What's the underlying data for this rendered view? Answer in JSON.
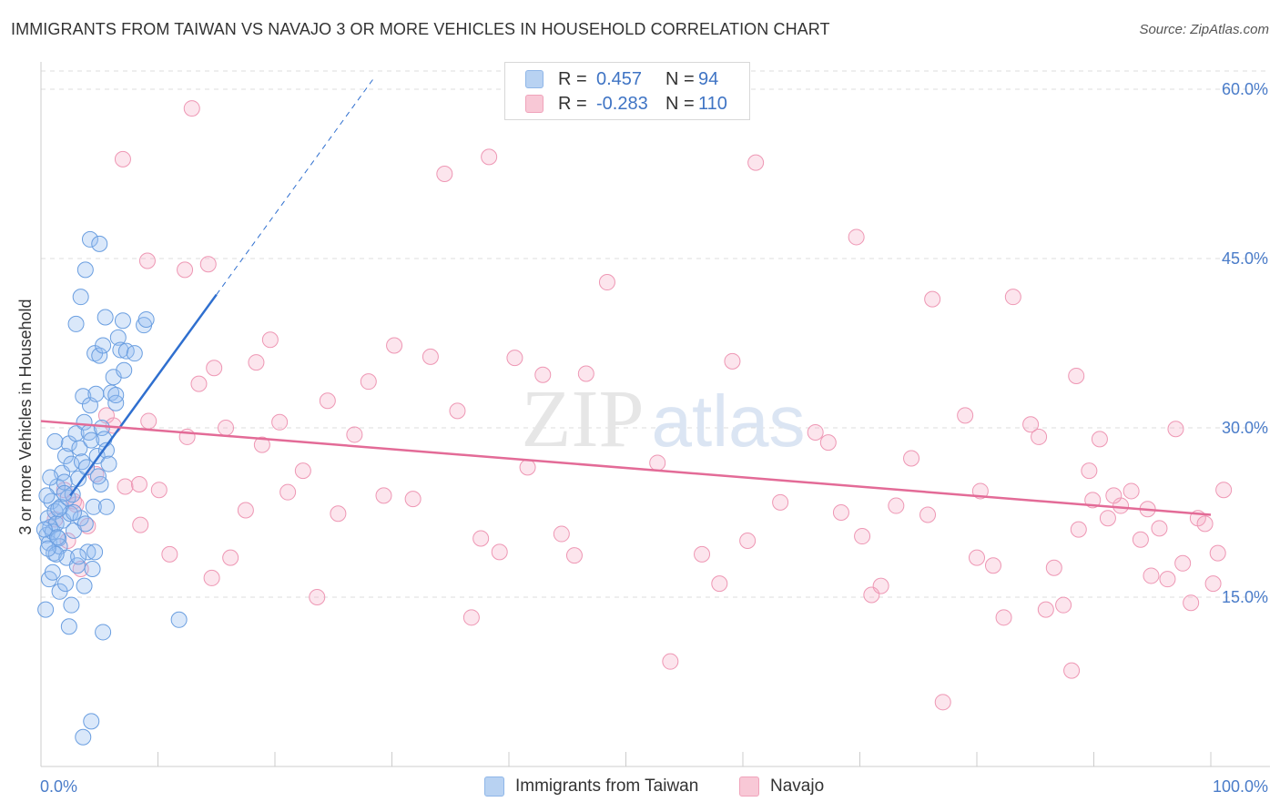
{
  "header": {
    "title": "IMMIGRANTS FROM TAIWAN VS NAVAJO 3 OR MORE VEHICLES IN HOUSEHOLD CORRELATION CHART",
    "source": "Source: ZipAtlas.com"
  },
  "watermark": {
    "zip": "ZIP",
    "atlas": "atlas"
  },
  "legend": {
    "rows": [
      {
        "r_label": "R =",
        "r_value": "0.457",
        "n_label": "N =",
        "n_value": "94",
        "color": "#8fb6e8",
        "fill": "#b8d2f2"
      },
      {
        "r_label": "R =",
        "r_value": "-0.283",
        "n_label": "N =",
        "n_value": "110",
        "color": "#f0a3bb",
        "fill": "#f8c8d6"
      }
    ]
  },
  "bottom_legend": [
    {
      "label": "Immigrants from Taiwan"
    },
    {
      "label": "Navajo"
    }
  ],
  "colors": {
    "blue_point_fill": "rgba(150,190,240,0.35)",
    "blue_point_stroke": "#6a9ee0",
    "pink_point_fill": "rgba(245,170,195,0.30)",
    "pink_point_stroke": "#ee97b4",
    "blue_line": "#2f6fcf",
    "pink_line": "#e36b97",
    "grid": "#dddddd",
    "tick_text": "#4a7cc9"
  },
  "chart_data": {
    "type": "scatter",
    "title": "IMMIGRANTS FROM TAIWAN VS NAVAJO 3 OR MORE VEHICLES IN HOUSEHOLD CORRELATION CHART",
    "xlabel": "",
    "ylabel": "3 or more Vehicles in Household",
    "xlim": [
      0,
      100
    ],
    "ylim": [
      0,
      62
    ],
    "x_tick_labels": [
      "0.0%",
      "100.0%"
    ],
    "y_ticks": [
      15,
      30,
      45,
      60
    ],
    "y_tick_labels": [
      "15.0%",
      "30.0%",
      "45.0%",
      "60.0%"
    ],
    "grid": true,
    "legend_position": "top-center",
    "series": [
      {
        "name": "Immigrants from Taiwan",
        "color": "#6a9ee0",
        "points": [
          [
            0.5,
            20.5
          ],
          [
            0.6,
            22.0
          ],
          [
            0.7,
            19.8
          ],
          [
            0.8,
            21.2
          ],
          [
            0.9,
            23.5
          ],
          [
            1.0,
            20.8
          ],
          [
            1.1,
            18.9
          ],
          [
            1.2,
            22.6
          ],
          [
            1.3,
            21.5
          ],
          [
            1.4,
            24.8
          ],
          [
            1.5,
            20.2
          ],
          [
            1.6,
            19.5
          ],
          [
            1.7,
            23.0
          ],
          [
            1.8,
            26.0
          ],
          [
            1.9,
            21.8
          ],
          [
            2.0,
            25.2
          ],
          [
            2.1,
            27.5
          ],
          [
            2.2,
            18.5
          ],
          [
            2.3,
            23.8
          ],
          [
            2.4,
            28.6
          ],
          [
            2.5,
            22.4
          ],
          [
            2.6,
            26.8
          ],
          [
            2.7,
            24.1
          ],
          [
            2.8,
            20.9
          ],
          [
            3.0,
            29.5
          ],
          [
            3.1,
            17.8
          ],
          [
            3.2,
            25.5
          ],
          [
            3.3,
            28.2
          ],
          [
            3.4,
            22.0
          ],
          [
            3.5,
            27.0
          ],
          [
            3.6,
            32.8
          ],
          [
            3.7,
            30.5
          ],
          [
            3.8,
            21.5
          ],
          [
            3.9,
            26.5
          ],
          [
            4.0,
            19.0
          ],
          [
            4.1,
            29.6
          ],
          [
            4.2,
            32.0
          ],
          [
            4.3,
            28.9
          ],
          [
            4.4,
            17.5
          ],
          [
            4.5,
            23.0
          ],
          [
            4.6,
            36.6
          ],
          [
            4.7,
            33.0
          ],
          [
            4.8,
            27.5
          ],
          [
            5.0,
            36.4
          ],
          [
            5.1,
            25.0
          ],
          [
            5.2,
            30.0
          ],
          [
            5.3,
            37.3
          ],
          [
            5.4,
            29.0
          ],
          [
            5.5,
            39.8
          ],
          [
            5.6,
            28.0
          ],
          [
            5.8,
            26.8
          ],
          [
            6.0,
            33.1
          ],
          [
            6.2,
            34.5
          ],
          [
            6.4,
            32.2
          ],
          [
            6.6,
            38.0
          ],
          [
            6.8,
            36.9
          ],
          [
            7.0,
            39.5
          ],
          [
            7.3,
            36.8
          ],
          [
            0.4,
            13.9
          ],
          [
            0.7,
            16.6
          ],
          [
            1.0,
            17.2
          ],
          [
            1.3,
            18.8
          ],
          [
            1.6,
            15.5
          ],
          [
            2.1,
            16.2
          ],
          [
            2.4,
            12.4
          ],
          [
            2.6,
            14.3
          ],
          [
            3.0,
            39.2
          ],
          [
            3.4,
            41.6
          ],
          [
            3.8,
            44.0
          ],
          [
            4.2,
            46.7
          ],
          [
            5.0,
            46.3
          ],
          [
            3.7,
            16.0
          ],
          [
            4.6,
            19.0
          ],
          [
            5.3,
            11.9
          ],
          [
            6.4,
            32.9
          ],
          [
            7.1,
            35.1
          ],
          [
            8.0,
            36.6
          ],
          [
            8.8,
            39.1
          ],
          [
            9.0,
            39.6
          ],
          [
            11.8,
            13.0
          ],
          [
            3.6,
            2.6
          ],
          [
            4.3,
            4.0
          ],
          [
            1.2,
            28.8
          ],
          [
            0.5,
            24.0
          ],
          [
            0.8,
            25.6
          ],
          [
            1.5,
            22.8
          ],
          [
            2.8,
            22.5
          ],
          [
            3.2,
            18.6
          ],
          [
            2.0,
            24.2
          ],
          [
            1.4,
            20.3
          ],
          [
            0.3,
            21.0
          ],
          [
            0.6,
            19.3
          ],
          [
            5.6,
            23.0
          ],
          [
            4.9,
            25.7
          ]
        ]
      },
      {
        "name": "Navajo",
        "color": "#ee97b4",
        "points": [
          [
            2.0,
            24.5
          ],
          [
            2.8,
            23.5
          ],
          [
            3.4,
            17.5
          ],
          [
            4.0,
            21.3
          ],
          [
            4.7,
            25.9
          ],
          [
            5.6,
            31.1
          ],
          [
            7.2,
            24.8
          ],
          [
            8.5,
            21.4
          ],
          [
            9.2,
            30.6
          ],
          [
            10.1,
            24.5
          ],
          [
            11.0,
            18.8
          ],
          [
            12.5,
            29.2
          ],
          [
            13.5,
            33.9
          ],
          [
            14.6,
            16.7
          ],
          [
            15.8,
            30.0
          ],
          [
            16.2,
            18.5
          ],
          [
            17.5,
            22.7
          ],
          [
            18.9,
            28.5
          ],
          [
            19.6,
            37.8
          ],
          [
            20.4,
            30.5
          ],
          [
            21.1,
            24.3
          ],
          [
            22.4,
            26.2
          ],
          [
            23.6,
            15.0
          ],
          [
            24.5,
            32.4
          ],
          [
            25.4,
            22.4
          ],
          [
            26.8,
            29.4
          ],
          [
            28.0,
            34.1
          ],
          [
            29.3,
            24.0
          ],
          [
            30.2,
            37.3
          ],
          [
            31.8,
            23.7
          ],
          [
            33.3,
            36.3
          ],
          [
            34.5,
            52.5
          ],
          [
            35.6,
            31.5
          ],
          [
            36.8,
            13.2
          ],
          [
            37.6,
            20.2
          ],
          [
            38.3,
            54.0
          ],
          [
            39.2,
            19.0
          ],
          [
            40.5,
            36.2
          ],
          [
            41.6,
            26.5
          ],
          [
            42.9,
            34.7
          ],
          [
            44.5,
            20.6
          ],
          [
            45.6,
            18.7
          ],
          [
            46.6,
            34.8
          ],
          [
            48.4,
            42.9
          ],
          [
            52.7,
            26.9
          ],
          [
            53.8,
            9.3
          ],
          [
            56.5,
            18.8
          ],
          [
            58.0,
            16.2
          ],
          [
            59.1,
            35.9
          ],
          [
            60.4,
            20.0
          ],
          [
            61.1,
            53.5
          ],
          [
            63.2,
            23.4
          ],
          [
            66.2,
            29.6
          ],
          [
            67.3,
            28.7
          ],
          [
            68.4,
            22.5
          ],
          [
            69.7,
            46.9
          ],
          [
            70.2,
            20.4
          ],
          [
            71.0,
            15.2
          ],
          [
            71.8,
            16.0
          ],
          [
            73.1,
            23.1
          ],
          [
            74.4,
            27.3
          ],
          [
            75.8,
            22.3
          ],
          [
            76.2,
            41.4
          ],
          [
            77.1,
            5.7
          ],
          [
            79.0,
            31.1
          ],
          [
            80.3,
            24.4
          ],
          [
            81.4,
            17.8
          ],
          [
            82.3,
            13.2
          ],
          [
            83.1,
            41.6
          ],
          [
            84.6,
            30.3
          ],
          [
            85.3,
            29.2
          ],
          [
            85.9,
            13.9
          ],
          [
            86.6,
            17.6
          ],
          [
            87.4,
            14.3
          ],
          [
            88.1,
            8.5
          ],
          [
            88.5,
            34.6
          ],
          [
            89.6,
            26.2
          ],
          [
            90.5,
            29.0
          ],
          [
            91.2,
            22.0
          ],
          [
            92.3,
            23.1
          ],
          [
            93.2,
            24.4
          ],
          [
            94.0,
            20.1
          ],
          [
            94.9,
            16.9
          ],
          [
            95.6,
            21.1
          ],
          [
            96.3,
            16.6
          ],
          [
            97.0,
            29.9
          ],
          [
            97.6,
            18.0
          ],
          [
            98.3,
            14.5
          ],
          [
            98.9,
            22.0
          ],
          [
            99.5,
            21.5
          ],
          [
            100.2,
            16.2
          ],
          [
            100.6,
            18.9
          ],
          [
            101.1,
            24.5
          ],
          [
            91.7,
            24.0
          ],
          [
            89.9,
            23.6
          ],
          [
            94.6,
            22.8
          ],
          [
            88.7,
            21.0
          ],
          [
            80.0,
            18.5
          ],
          [
            7.0,
            53.8
          ],
          [
            12.9,
            58.3
          ],
          [
            9.1,
            44.8
          ],
          [
            12.3,
            44.0
          ],
          [
            14.3,
            44.5
          ],
          [
            14.8,
            35.3
          ],
          [
            18.4,
            35.8
          ],
          [
            8.4,
            25.0
          ],
          [
            6.2,
            30.2
          ],
          [
            3.0,
            23.2
          ],
          [
            2.3,
            20.0
          ],
          [
            1.2,
            21.9
          ]
        ]
      }
    ],
    "trendlines": [
      {
        "series": "Immigrants from Taiwan",
        "solid_x": [
          2.5,
          15.0
        ],
        "solid_y": [
          24.0,
          41.8
        ],
        "dashed_to_x": 28.4,
        "dashed_to_y": 60.9
      },
      {
        "series": "Navajo",
        "x": [
          0,
          100
        ],
        "y": [
          30.6,
          22.3
        ]
      }
    ]
  }
}
